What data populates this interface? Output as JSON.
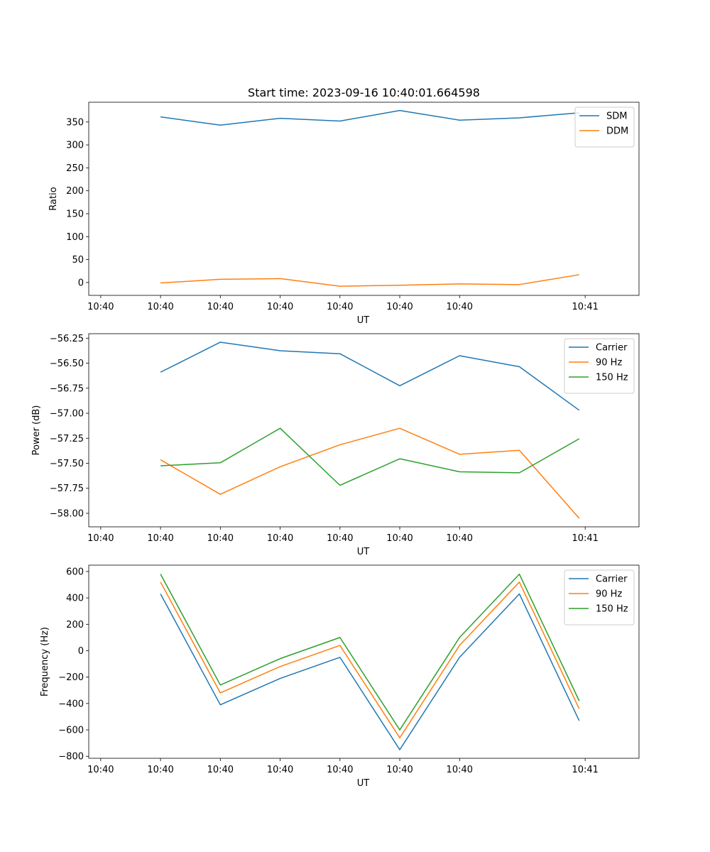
{
  "chart_data": [
    {
      "type": "line",
      "title": "Start time: 2023-09-16 10:40:01.664598",
      "xlabel": "UT",
      "ylabel": "Ratio",
      "x_tick_labels": [
        "10:40",
        "10:40",
        "10:40",
        "10:40",
        "10:40",
        "10:40",
        "10:40",
        "10:41"
      ],
      "xlim": [
        -0.2,
        9
      ],
      "x": [
        1,
        2,
        3,
        4,
        5,
        6,
        7,
        8
      ],
      "ylim": [
        -28,
        393
      ],
      "y_ticks": [
        0,
        50,
        100,
        150,
        200,
        250,
        300,
        350
      ],
      "y_tick_labels": [
        "0",
        "50",
        "100",
        "150",
        "200",
        "250",
        "300",
        "350"
      ],
      "legend": {
        "placement": "top-right"
      },
      "series": [
        {
          "name": "SDM",
          "color": "#1f77b4",
          "values": [
            361,
            343,
            358,
            352,
            375,
            354,
            359,
            370
          ]
        },
        {
          "name": "DDM",
          "color": "#ff7f0e",
          "values": [
            -1,
            7,
            8.5,
            -8,
            -6,
            -3,
            -4.5,
            17
          ]
        }
      ]
    },
    {
      "type": "line",
      "title": "",
      "xlabel": "UT",
      "ylabel": "Power (dB)",
      "x_tick_labels": [
        "10:40",
        "10:40",
        "10:40",
        "10:40",
        "10:40",
        "10:40",
        "10:40",
        "10:41"
      ],
      "xlim": [
        -0.2,
        9
      ],
      "x": [
        1,
        2,
        3,
        4,
        5,
        6,
        7,
        8
      ],
      "ylim": [
        -58.135,
        -56.205
      ],
      "y_ticks": [
        -58.0,
        -57.75,
        -57.5,
        -57.25,
        -57.0,
        -56.75,
        -56.5,
        -56.25
      ],
      "y_tick_labels": [
        "−58.00",
        "−57.75",
        "−57.50",
        "−57.25",
        "−57.00",
        "−56.75",
        "−56.50",
        "−56.25"
      ],
      "legend": {
        "placement": "top-right"
      },
      "series": [
        {
          "name": "Carrier",
          "color": "#1f77b4",
          "values": [
            -56.59,
            -56.29,
            -56.375,
            -56.405,
            -56.725,
            -56.425,
            -56.535,
            -56.97
          ]
        },
        {
          "name": "90 Hz",
          "color": "#ff7f0e",
          "values": [
            -57.465,
            -57.81,
            -57.535,
            -57.315,
            -57.15,
            -57.41,
            -57.37,
            -58.05
          ]
        },
        {
          "name": "150 Hz",
          "color": "#2ca02c",
          "values": [
            -57.525,
            -57.495,
            -57.15,
            -57.72,
            -57.455,
            -57.585,
            -57.595,
            -57.255
          ]
        }
      ]
    },
    {
      "type": "line",
      "title": "",
      "xlabel": "UT",
      "ylabel": "Frequency (Hz)",
      "x_tick_labels": [
        "10:40",
        "10:40",
        "10:40",
        "10:40",
        "10:40",
        "10:40",
        "10:40",
        "10:41"
      ],
      "xlim": [
        -0.2,
        9
      ],
      "x": [
        1,
        2,
        3,
        4,
        5,
        6,
        7,
        8
      ],
      "ylim": [
        -815,
        648
      ],
      "y_ticks": [
        -800,
        -600,
        -400,
        -200,
        0,
        200,
        400,
        600
      ],
      "y_tick_labels": [
        "−800",
        "−600",
        "−400",
        "−200",
        "0",
        "200",
        "400",
        "600"
      ],
      "legend": {
        "placement": "top-right"
      },
      "series": [
        {
          "name": "Carrier",
          "color": "#1f77b4",
          "values": [
            430,
            -410,
            -210,
            -50,
            -750,
            -50,
            430,
            -530
          ]
        },
        {
          "name": "90 Hz",
          "color": "#ff7f0e",
          "values": [
            520,
            -320,
            -120,
            40,
            -660,
            40,
            520,
            -440
          ]
        },
        {
          "name": "150 Hz",
          "color": "#2ca02c",
          "values": [
            580,
            -260,
            -60,
            100,
            -600,
            100,
            580,
            -380
          ]
        }
      ]
    }
  ]
}
